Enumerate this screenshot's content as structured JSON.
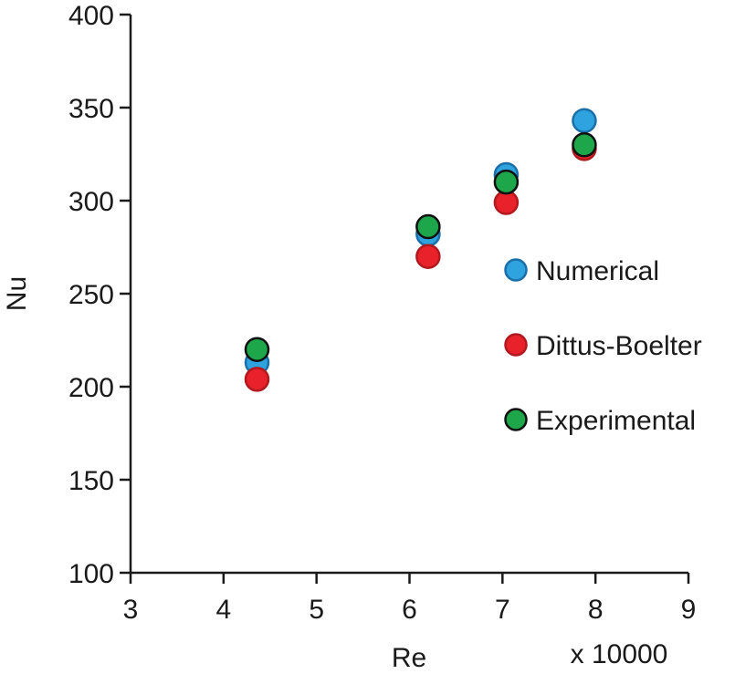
{
  "chart_data": {
    "type": "scatter",
    "title": "",
    "xlabel": "Re",
    "x_multiplier_label": "x 10000",
    "ylabel": "Nu",
    "xlim": [
      3,
      9
    ],
    "ylim": [
      100,
      400
    ],
    "x_ticks": [
      "3",
      "4",
      "5",
      "6",
      "7",
      "8",
      "9"
    ],
    "y_ticks": [
      "100",
      "150",
      "200",
      "250",
      "300",
      "350",
      "400"
    ],
    "grid": false,
    "legend_position": "right",
    "series": [
      {
        "name": "Numerical",
        "color": "#2ea3e0",
        "edge": "#1b6fa8",
        "x": [
          4.36,
          6.2,
          7.04,
          7.88
        ],
        "y": [
          213,
          282,
          314,
          343
        ]
      },
      {
        "name": "Dittus-Boelter",
        "color": "#e8212a",
        "edge": "#b01a1f",
        "x": [
          4.36,
          6.2,
          7.04,
          7.88
        ],
        "y": [
          204,
          270,
          299,
          328
        ]
      },
      {
        "name": "Experimental",
        "color": "#1ea64a",
        "edge": "#111111",
        "x": [
          4.36,
          6.2,
          7.04,
          7.88
        ],
        "y": [
          220,
          286,
          310,
          330
        ]
      }
    ]
  }
}
